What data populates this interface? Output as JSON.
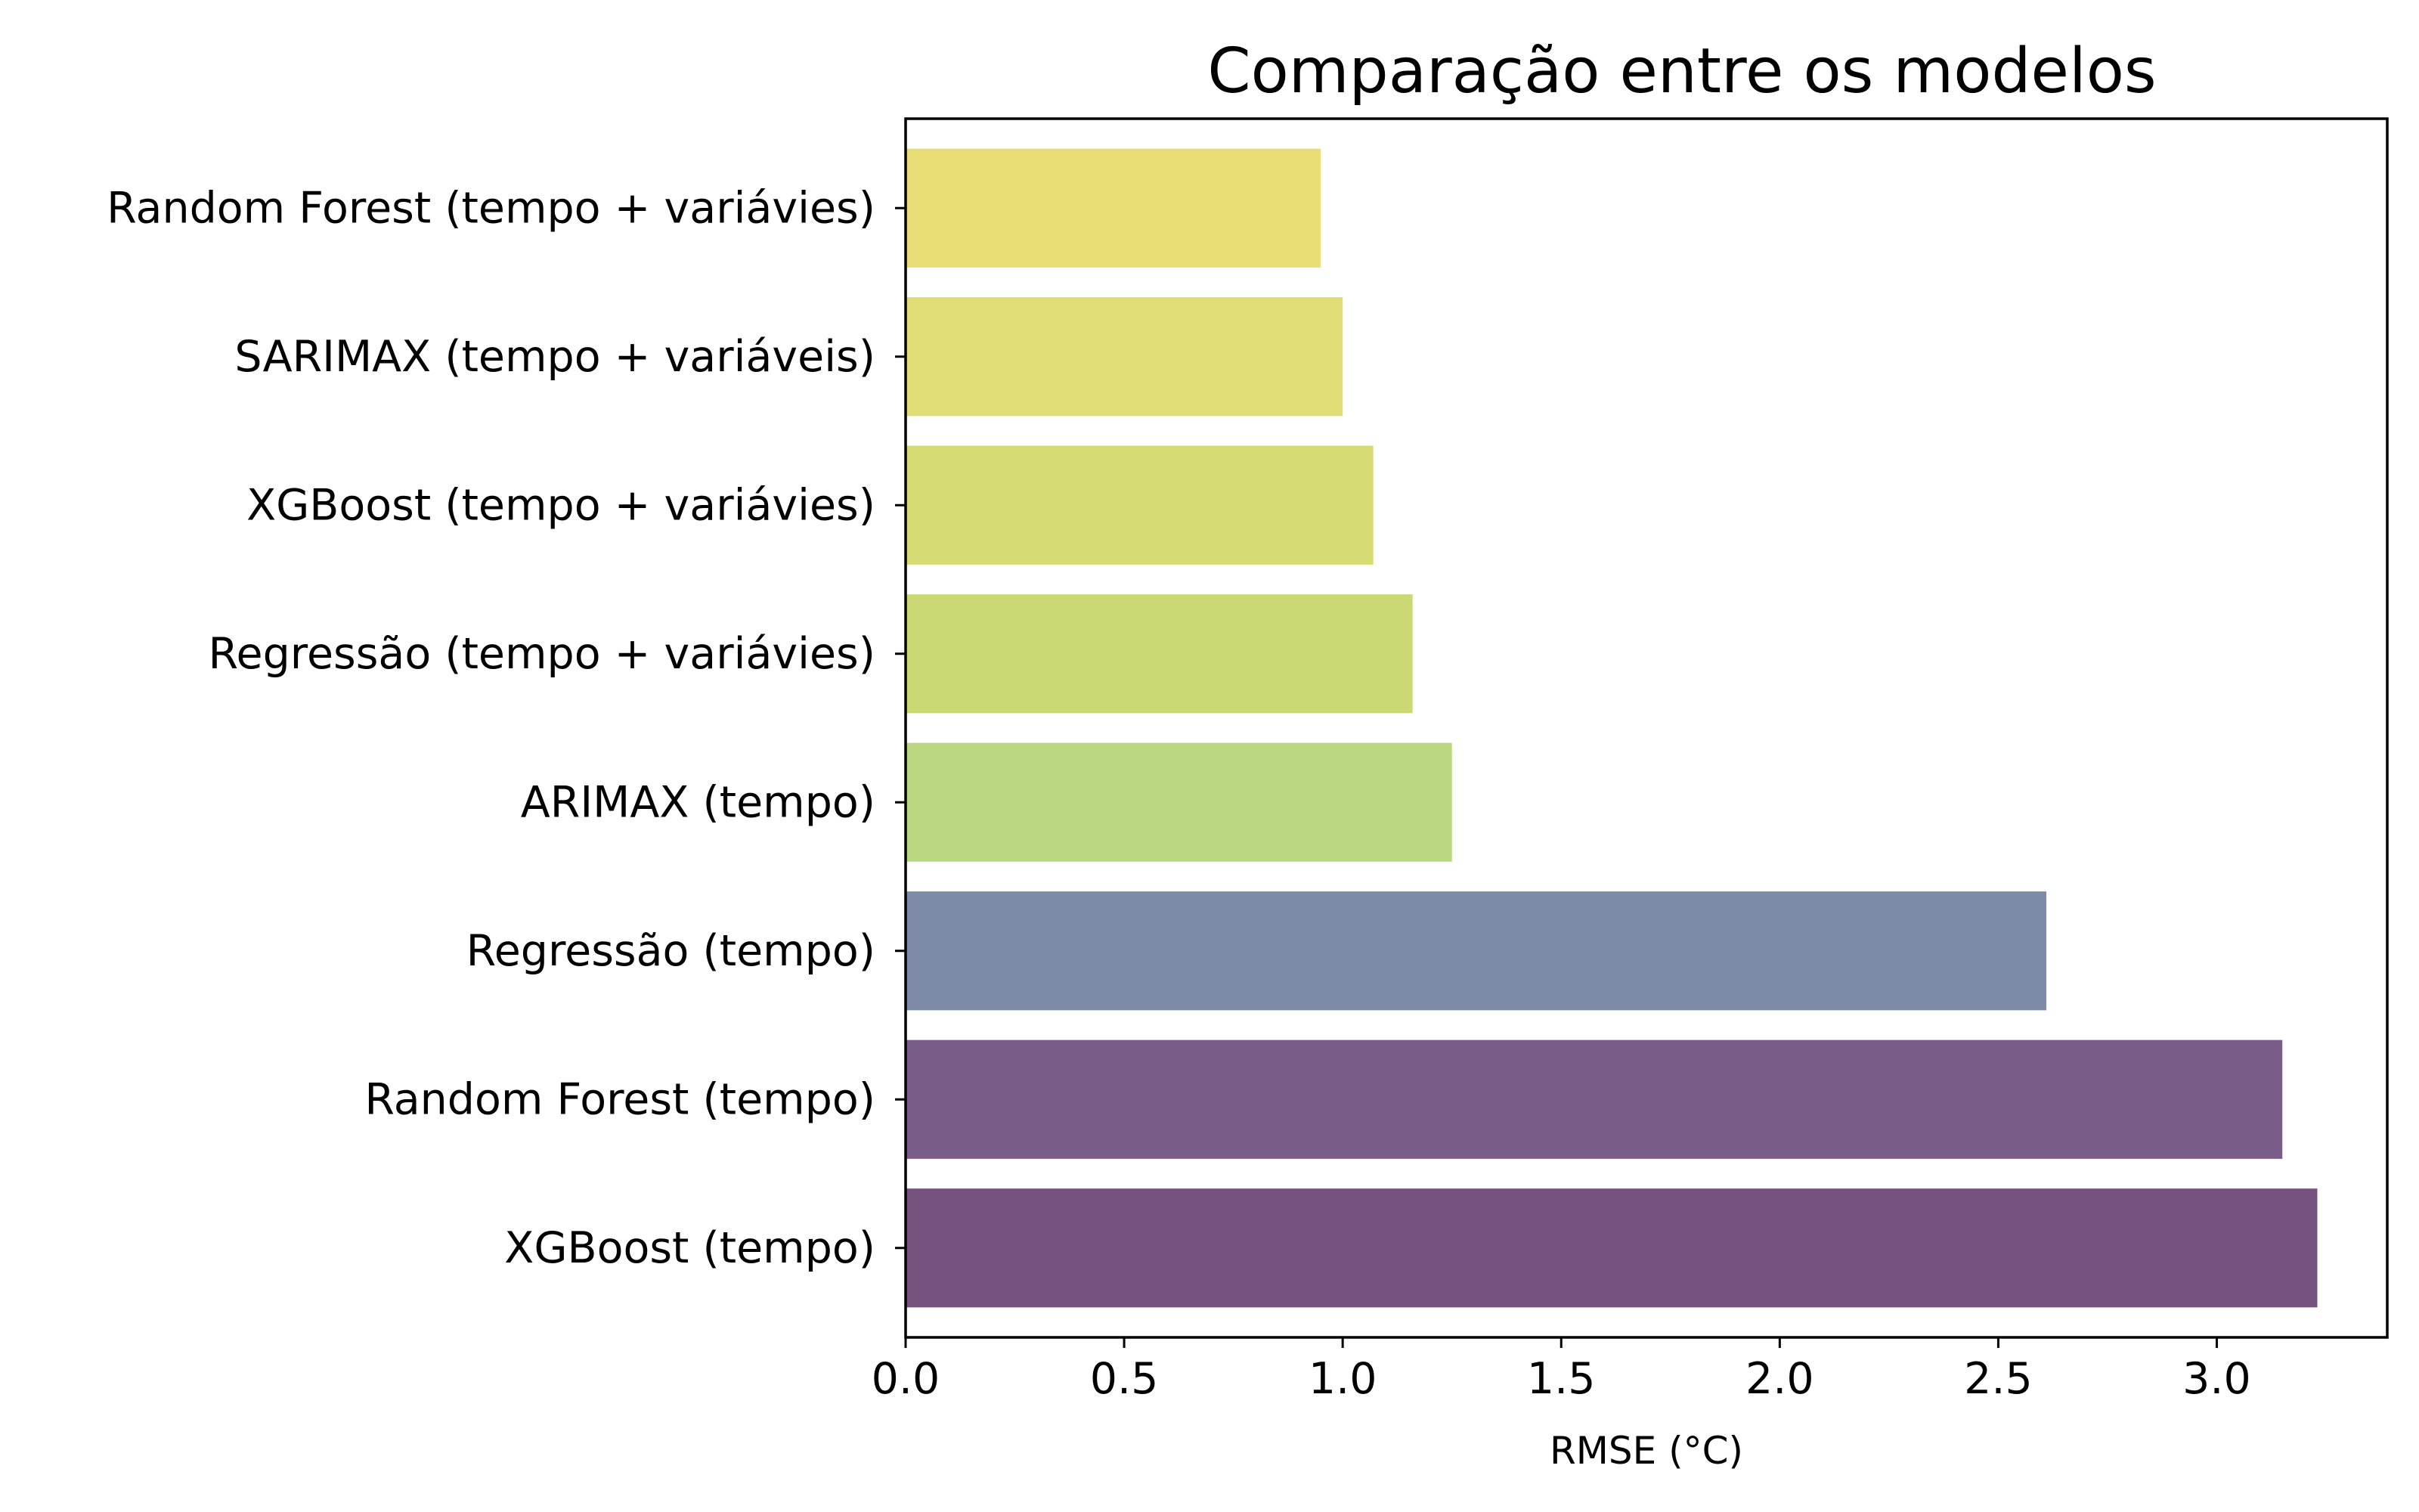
{
  "chart_data": {
    "type": "bar",
    "orientation": "horizontal",
    "title": "Comparação entre os modelos",
    "xlabel": "RMSE (°C)",
    "ylabel": "",
    "xlim": [
      0,
      3.39
    ],
    "xticks": [
      "0.0",
      "0.5",
      "1.0",
      "1.5",
      "2.0",
      "2.5",
      "3.0"
    ],
    "grid": false,
    "categories": [
      "Random Forest (tempo + variávies)",
      "SARIMAX (tempo + variáveis)",
      "XGBoost (tempo + variávies)",
      "Regressão (tempo + variávies)",
      "ARIMAX (tempo)",
      "Regressão (tempo)",
      "Random Forest (tempo)",
      "XGBoost (tempo)"
    ],
    "values": [
      0.95,
      1.0,
      1.07,
      1.16,
      1.25,
      2.61,
      3.15,
      3.23
    ],
    "colors": [
      "#e8dd76",
      "#e0dc76",
      "#d6da72",
      "#cbd874",
      "#bbd880",
      "#7d8ba8",
      "#7a5c88",
      "#76527e"
    ]
  }
}
